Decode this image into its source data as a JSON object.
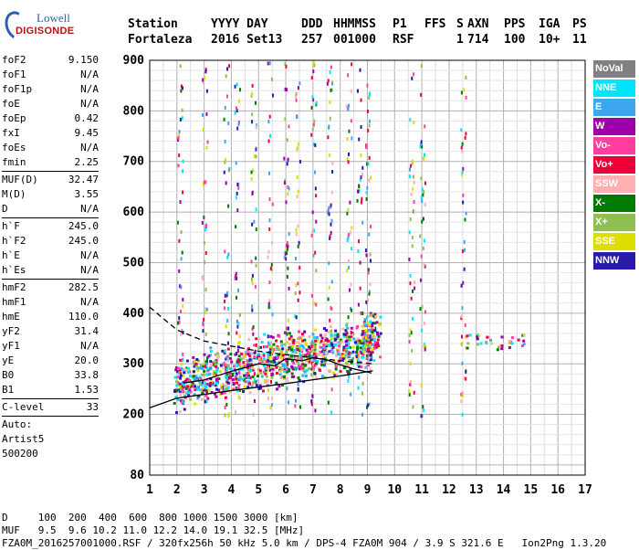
{
  "logo": {
    "line1": "Lowell",
    "line2": "DIGISONDE"
  },
  "header": {
    "labels": [
      "Station",
      "YYYY DAY",
      "DDD",
      "HHMMSS",
      "P1",
      "FFS",
      "S",
      "AXN",
      "PPS",
      "IGA",
      "PS"
    ],
    "values": [
      "Fortaleza",
      "2016 Set13",
      "257",
      "001000",
      "RSF",
      "",
      "1",
      "714",
      "100",
      "10+",
      "11"
    ]
  },
  "params": {
    "group1": [
      {
        "name": "foF2",
        "value": "9.150"
      },
      {
        "name": "foF1",
        "value": "N/A"
      },
      {
        "name": "foF1p",
        "value": "N/A"
      },
      {
        "name": "foE",
        "value": "N/A"
      },
      {
        "name": "foEp",
        "value": "0.42"
      },
      {
        "name": "fxI",
        "value": "9.45"
      },
      {
        "name": "foEs",
        "value": "N/A"
      },
      {
        "name": "fmin",
        "value": "2.25"
      }
    ],
    "group2": [
      {
        "name": "MUF(D)",
        "value": "32.47"
      },
      {
        "name": "M(D)",
        "value": "3.55"
      },
      {
        "name": "D",
        "value": "N/A"
      }
    ],
    "group3": [
      {
        "name": "h`F",
        "value": "245.0"
      },
      {
        "name": "h`F2",
        "value": "245.0"
      },
      {
        "name": "h`E",
        "value": "N/A"
      },
      {
        "name": "h`Es",
        "value": "N/A"
      }
    ],
    "group4": [
      {
        "name": "hmF2",
        "value": "282.5"
      },
      {
        "name": "hmF1",
        "value": "N/A"
      },
      {
        "name": "hmE",
        "value": "110.0"
      },
      {
        "name": "yF2",
        "value": "31.4"
      },
      {
        "name": "yF1",
        "value": "N/A"
      },
      {
        "name": "yE",
        "value": "20.0"
      },
      {
        "name": "B0",
        "value": "33.8"
      },
      {
        "name": "B1",
        "value": "1.53"
      }
    ],
    "clevel": {
      "name": "C-level",
      "value": "33"
    },
    "auto": [
      "Auto:",
      "Artist5",
      "500200"
    ]
  },
  "footer": {
    "line1": "D     100  200  400  600  800 1000 1500 3000 [km]",
    "line2": "MUF   9.5  9.6 10.2 11.0 12.2 14.0 19.1 32.5 [MHz]",
    "line3": "FZA0M_2016257001000.RSF / 320fx256h 50 kHz 5.0 km / DPS-4 FZA0M 904 / 3.9 S 321.6 E   Ion2Png 1.3.20"
  },
  "legend": [
    {
      "label": "NoVal",
      "color": "#808080"
    },
    {
      "label": "NNE",
      "color": "#00e5ff"
    },
    {
      "label": "E",
      "color": "#3aa7ef"
    },
    {
      "label": "W",
      "color": "#a000a8"
    },
    {
      "label": "Vo-",
      "color": "#ff3fa0"
    },
    {
      "label": "Vo+",
      "color": "#f0003a"
    },
    {
      "label": "SSW",
      "color": "#ffb0b0"
    },
    {
      "label": "X-",
      "color": "#007a00"
    },
    {
      "label": "X+",
      "color": "#8fbf50"
    },
    {
      "label": "SSE",
      "color": "#dede00"
    },
    {
      "label": "NNW",
      "color": "#2a1aa8"
    }
  ],
  "chart_data": {
    "type": "scatter",
    "title": "",
    "xlabel": "",
    "ylabel": "",
    "xlim": [
      1,
      17
    ],
    "ylim": [
      80,
      900
    ],
    "x_ticks": [
      "1",
      "2",
      "3",
      "4",
      "5",
      "6",
      "7",
      "8",
      "9",
      "10",
      "11",
      "12",
      "13",
      "14",
      "15",
      "16",
      "17"
    ],
    "y_ticks": [
      "80",
      "200",
      "300",
      "400",
      "500",
      "600",
      "700",
      "800",
      "900"
    ],
    "grid": true,
    "legend_position": "right",
    "series": [
      {
        "name": "profile",
        "style": "solid",
        "x": [
          2.25,
          3,
          4,
          5,
          5.6,
          6,
          6.6,
          7,
          7.5,
          8,
          8.5,
          9.15
        ],
        "y": [
          262,
          268,
          285,
          300,
          296,
          310,
          306,
          312,
          308,
          298,
          290,
          282
        ]
      },
      {
        "name": "lower_bound",
        "style": "solid",
        "x": [
          1,
          2,
          4,
          6,
          8,
          9.2
        ],
        "y": [
          213,
          232,
          247,
          261,
          276,
          286
        ]
      },
      {
        "name": "upper_bound",
        "style": "dashed",
        "x": [
          1,
          2,
          3,
          4,
          5,
          6,
          7,
          8,
          9.2
        ],
        "y": [
          412,
          367,
          345,
          335,
          325,
          318,
          312,
          306,
          300
        ]
      }
    ],
    "scatter_points": [
      {
        "x": 2.1,
        "y": 258
      },
      {
        "x": 2.4,
        "y": 266
      },
      {
        "x": 2.8,
        "y": 272
      },
      {
        "x": 3.2,
        "y": 280
      },
      {
        "x": 3.6,
        "y": 285
      },
      {
        "x": 4.0,
        "y": 290
      },
      {
        "x": 4.4,
        "y": 295
      },
      {
        "x": 4.8,
        "y": 300
      },
      {
        "x": 5.2,
        "y": 305
      },
      {
        "x": 5.6,
        "y": 310
      },
      {
        "x": 6.0,
        "y": 312
      },
      {
        "x": 6.4,
        "y": 315
      },
      {
        "x": 6.8,
        "y": 318
      },
      {
        "x": 7.2,
        "y": 322
      },
      {
        "x": 7.6,
        "y": 326
      },
      {
        "x": 8.0,
        "y": 330
      },
      {
        "x": 8.4,
        "y": 335
      },
      {
        "x": 8.8,
        "y": 340
      },
      {
        "x": 9.0,
        "y": 350
      },
      {
        "x": 9.2,
        "y": 360
      }
    ]
  }
}
